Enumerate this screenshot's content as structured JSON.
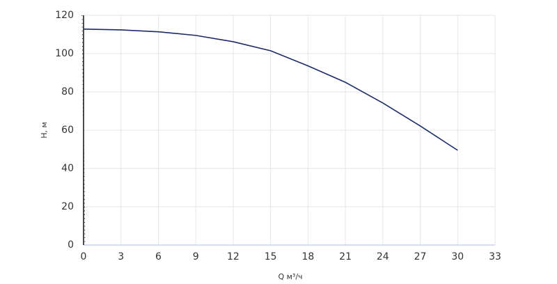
{
  "chart_data": {
    "type": "line",
    "x_label": "Q м³/ч",
    "y_label": "H, м",
    "x": [
      0,
      3,
      6,
      9,
      12,
      15,
      18,
      21,
      24,
      27,
      30
    ],
    "series": [
      {
        "name": "H",
        "color": "#1b2a6b",
        "values": [
          112.8,
          112.4,
          111.4,
          109.5,
          106.2,
          101.5,
          93.6,
          85,
          74.2,
          62.2,
          49.5
        ]
      }
    ],
    "xlim": [
      0,
      33
    ],
    "xticks": [
      0,
      3,
      6,
      9,
      12,
      15,
      18,
      21,
      24,
      27,
      30,
      33
    ],
    "ylim": [
      0,
      120
    ],
    "yticks": [
      0,
      20,
      40,
      60,
      80,
      100,
      120
    ],
    "grid": true
  }
}
